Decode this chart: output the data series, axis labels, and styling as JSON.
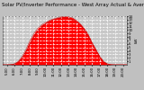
{
  "title": "Solar PV/Inverter Performance - West Array Actual & Average Power Output",
  "subtitle": "West Array",
  "xlabel": "",
  "ylabel": "kW",
  "bg_color": "#c0c0c0",
  "plot_bg_color": "#c8c8c8",
  "grid_color": "#ffffff",
  "fill_color": "#ff0000",
  "line_color": "#cc0000",
  "avg_line_color": "#cc0000",
  "ylim": [
    0,
    14
  ],
  "ytick_vals": [
    1,
    2,
    3,
    4,
    5,
    6,
    7,
    8,
    9,
    10,
    11,
    12,
    13,
    14
  ],
  "hours": [
    4.5,
    5.0,
    5.5,
    6.0,
    6.5,
    7.0,
    7.5,
    8.0,
    8.5,
    9.0,
    9.5,
    10.0,
    10.5,
    11.0,
    11.5,
    12.0,
    12.5,
    13.0,
    13.5,
    14.0,
    14.5,
    15.0,
    15.5,
    16.0,
    16.5,
    17.0,
    17.5,
    18.0,
    18.5,
    19.0,
    19.5,
    20.0,
    20.5
  ],
  "actual_values": [
    0.0,
    0.0,
    0.05,
    0.3,
    1.0,
    2.5,
    4.5,
    7.0,
    9.0,
    10.5,
    11.5,
    12.2,
    12.8,
    13.2,
    13.5,
    13.8,
    14.0,
    13.8,
    13.5,
    12.8,
    11.8,
    10.5,
    8.8,
    6.5,
    4.5,
    2.5,
    1.0,
    0.3,
    0.05,
    0.0,
    0.0,
    0.0,
    0.0
  ],
  "avg_values": [
    0.0,
    0.0,
    0.02,
    0.2,
    0.8,
    2.0,
    3.8,
    6.0,
    8.0,
    9.5,
    10.8,
    11.8,
    12.5,
    13.0,
    13.3,
    13.5,
    13.5,
    13.3,
    13.0,
    12.5,
    11.5,
    10.0,
    8.2,
    6.2,
    4.2,
    2.2,
    0.8,
    0.2,
    0.02,
    0.0,
    0.0,
    0.0,
    0.0
  ],
  "xlim": [
    4.5,
    20.5
  ],
  "xtick_positions": [
    5.0,
    6.0,
    7.0,
    8.0,
    9.0,
    10.0,
    11.0,
    12.0,
    13.0,
    14.0,
    15.0,
    16.0,
    17.0,
    18.0,
    19.0,
    20.0
  ],
  "xtick_labels": [
    "5:00",
    "6:00",
    "7:00",
    "8:00",
    "9:00",
    "10:00",
    "11:00",
    "12:00",
    "13:00",
    "14:00",
    "15:00",
    "16:00",
    "17:00",
    "18:00",
    "19:00",
    "20:00"
  ],
  "title_fontsize": 4.0,
  "axis_fontsize": 3.0,
  "tick_fontsize": 2.8,
  "ylabel_on_right": true
}
